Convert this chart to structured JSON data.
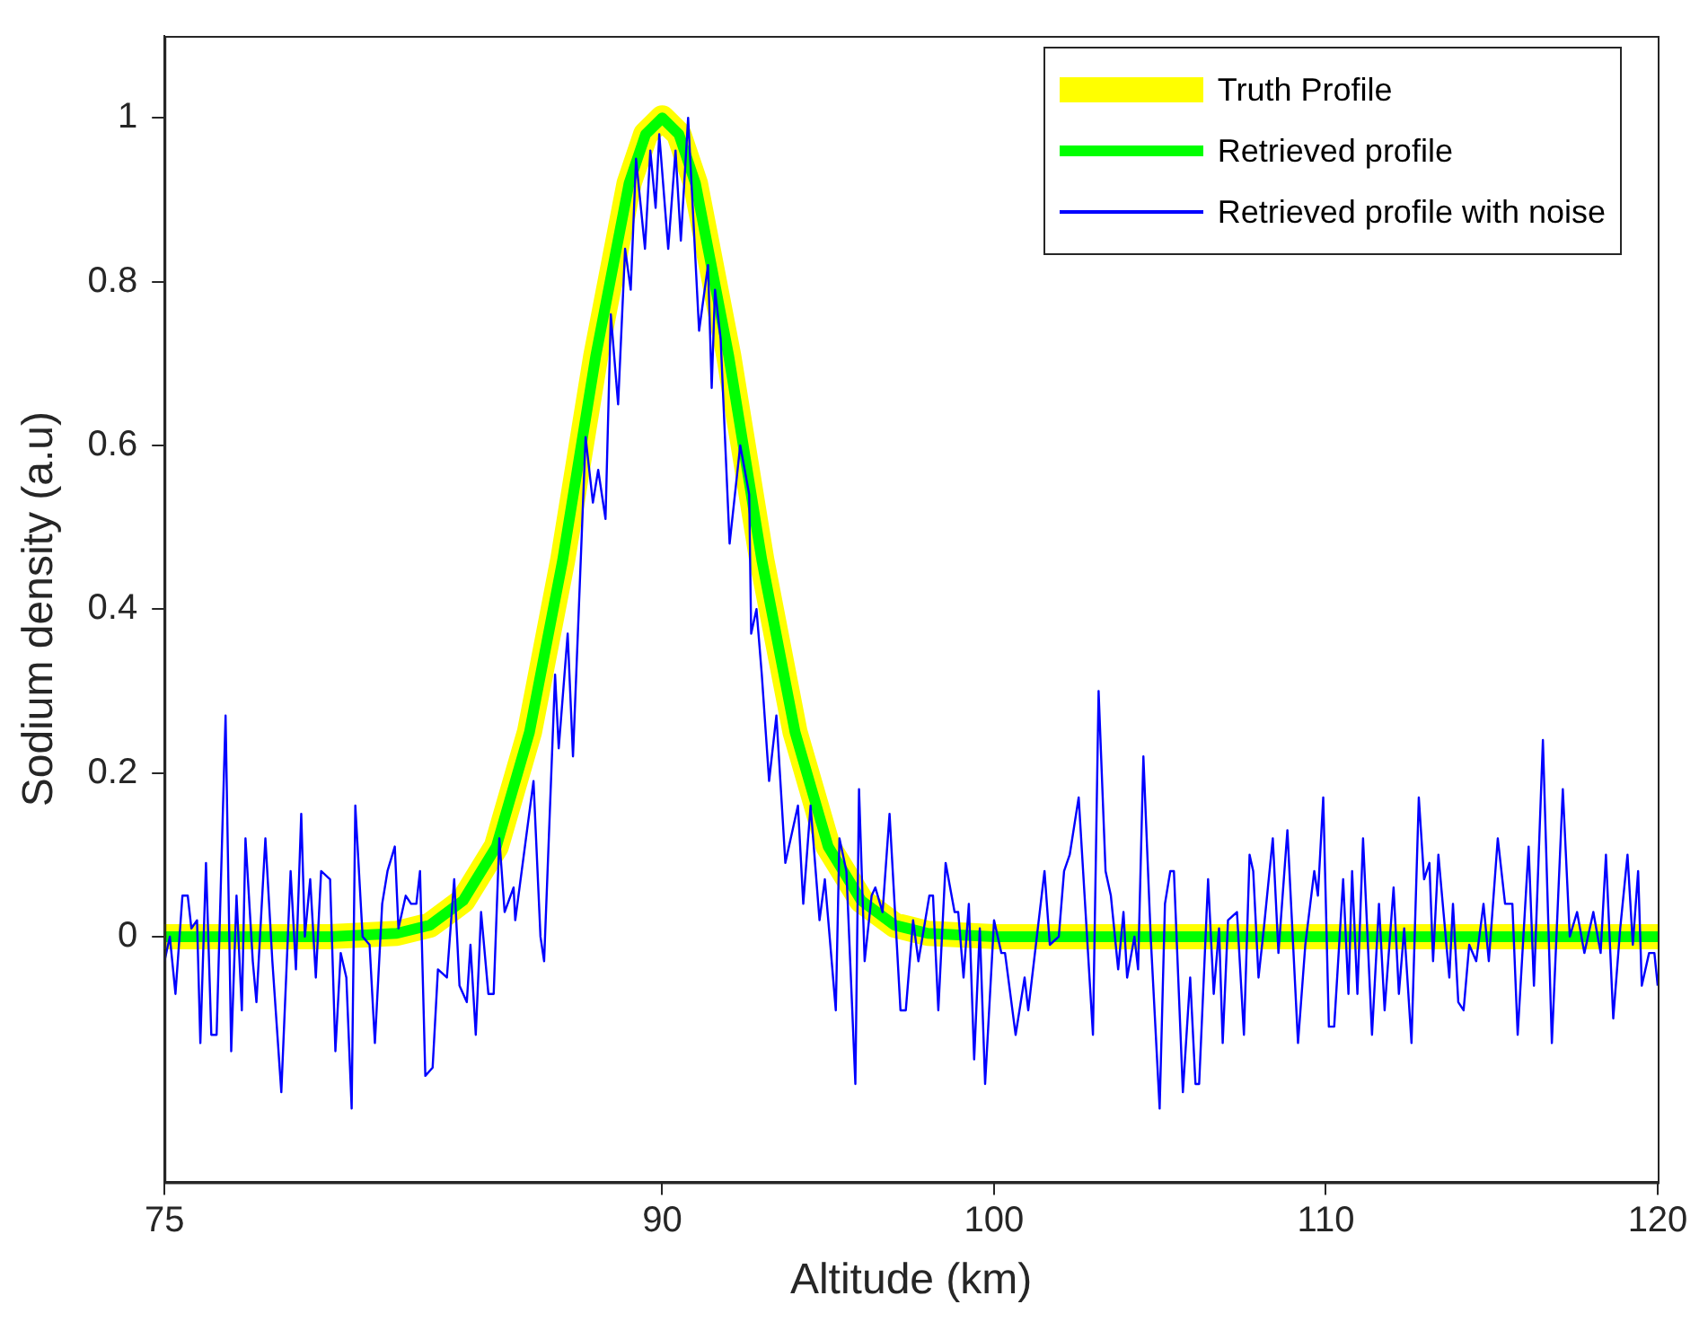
{
  "chart_data": {
    "type": "line",
    "xlabel": "Altitude (km)",
    "ylabel": "Sodium density (a.u)",
    "xlim": [
      75,
      120
    ],
    "ylim": [
      -0.3,
      1.1
    ],
    "xticks": [
      75,
      90,
      100,
      110,
      120
    ],
    "yticks": [
      0,
      0.2,
      0.4,
      0.6,
      0.8,
      1
    ],
    "grid": false,
    "legend": "top right",
    "marker": "none",
    "line_style": "solid",
    "series": [
      {
        "name": "Truth Profile",
        "color": "#ffff00",
        "x": [
          75,
          80,
          82,
          83,
          84,
          85,
          86,
          87,
          88,
          89,
          89.5,
          90,
          90.5,
          91,
          92,
          93,
          94,
          95,
          96,
          97,
          98,
          100,
          110,
          120
        ],
        "values": [
          0,
          0,
          0.004,
          0.014,
          0.044,
          0.11,
          0.25,
          0.46,
          0.71,
          0.92,
          0.98,
          1,
          0.98,
          0.92,
          0.71,
          0.46,
          0.25,
          0.11,
          0.044,
          0.014,
          0.004,
          0,
          0,
          0
        ]
      },
      {
        "name": "Retrieved profile",
        "color": "#00ff00",
        "x": [
          75,
          80,
          82,
          83,
          84,
          85,
          86,
          87,
          88,
          89,
          89.5,
          90,
          90.5,
          91,
          92,
          93,
          94,
          95,
          96,
          97,
          98,
          100,
          110,
          120
        ],
        "values": [
          0,
          0,
          0.004,
          0.014,
          0.044,
          0.11,
          0.25,
          0.46,
          0.71,
          0.92,
          0.98,
          1,
          0.98,
          0.92,
          0.71,
          0.46,
          0.25,
          0.11,
          0.044,
          0.014,
          0.004,
          0,
          0,
          0
        ]
      },
      {
        "name": "Retrieved profile with noise",
        "color": "#0000ff",
        "x": [
          75,
          75.16,
          75.33,
          75.54,
          75.7,
          75.81,
          75.98,
          76.08,
          76.25,
          76.41,
          76.57,
          76.84,
          77.01,
          77.17,
          77.33,
          77.44,
          77.66,
          77.77,
          78.04,
          78.25,
          78.52,
          78.8,
          78.96,
          79.12,
          79.23,
          79.39,
          79.56,
          79.72,
          79.99,
          80.15,
          80.31,
          80.48,
          80.64,
          80.75,
          80.97,
          81.18,
          81.34,
          81.56,
          81.72,
          81.94,
          82.05,
          82.27,
          82.43,
          82.59,
          82.7,
          82.86,
          83.08,
          83.24,
          83.51,
          83.73,
          83.89,
          84.11,
          84.22,
          84.38,
          84.54,
          84.76,
          84.92,
          85.09,
          85.25,
          85.52,
          85.57,
          86.12,
          86.33,
          86.44,
          86.77,
          86.88,
          87.15,
          87.31,
          87.69,
          87.91,
          88.07,
          88.29,
          88.45,
          88.67,
          88.88,
          89.05,
          89.21,
          89.48,
          89.64,
          89.8,
          89.91,
          90.18,
          90.4,
          90.56,
          90.78,
          91.11,
          91.38,
          91.49,
          91.59,
          91.76,
          92.03,
          92.35,
          92.62,
          92.68,
          92.84,
          93,
          93.22,
          93.44,
          93.71,
          94.09,
          94.25,
          94.47,
          94.74,
          94.9,
          95.23,
          95.34,
          95.55,
          95.82,
          95.93,
          96.1,
          96.31,
          96.42,
          96.64,
          96.85,
          97.18,
          97.34,
          97.56,
          97.72,
          98.05,
          98.16,
          98.32,
          98.54,
          98.81,
          98.92,
          99.08,
          99.24,
          99.4,
          99.57,
          99.73,
          100,
          100.22,
          100.33,
          100.65,
          100.92,
          101.03,
          101.52,
          101.68,
          101.95,
          102.11,
          102.28,
          102.55,
          102.98,
          103.15,
          103.36,
          103.52,
          103.74,
          103.9,
          104.01,
          104.23,
          104.34,
          104.5,
          104.72,
          104.99,
          105.15,
          105.31,
          105.42,
          105.69,
          105.91,
          106.07,
          106.18,
          106.45,
          106.62,
          106.78,
          106.89,
          107.05,
          107.32,
          107.53,
          107.7,
          107.81,
          107.97,
          108.13,
          108.4,
          108.57,
          108.84,
          109.16,
          109.38,
          109.65,
          109.76,
          109.92,
          110.09,
          110.25,
          110.52,
          110.68,
          110.79,
          110.95,
          111.12,
          111.39,
          111.6,
          111.77,
          112.04,
          112.2,
          112.36,
          112.58,
          112.8,
          112.96,
          113.12,
          113.23,
          113.39,
          113.72,
          113.83,
          113.99,
          114.15,
          114.32,
          114.53,
          114.75,
          114.91,
          115.18,
          115.4,
          115.62,
          115.78,
          116.11,
          116.27,
          116.54,
          116.81,
          117.14,
          117.35,
          117.57,
          117.79,
          118.06,
          118.28,
          118.44,
          118.66,
          118.87,
          119.09,
          119.25,
          119.41,
          119.52,
          119.74,
          119.9,
          120
        ],
        "values": [
          -0.03,
          0,
          -0.07,
          0.05,
          0.05,
          0.01,
          0.02,
          -0.13,
          0.09,
          -0.12,
          -0.12,
          0.27,
          -0.14,
          0.05,
          -0.09,
          0.12,
          -0.03,
          -0.08,
          0.12,
          -0.03,
          -0.19,
          0.08,
          -0.04,
          0.15,
          0,
          0.07,
          -0.05,
          0.08,
          0.07,
          -0.14,
          -0.02,
          -0.05,
          -0.21,
          0.16,
          0,
          -0.01,
          -0.13,
          0.04,
          0.08,
          0.11,
          0.01,
          0.05,
          0.04,
          0.04,
          0.08,
          -0.17,
          -0.16,
          -0.04,
          -0.05,
          0.07,
          -0.06,
          -0.08,
          -0.01,
          -0.12,
          0.03,
          -0.07,
          -0.07,
          0.12,
          0.03,
          0.06,
          0.02,
          0.19,
          0,
          -0.03,
          0.32,
          0.23,
          0.37,
          0.22,
          0.61,
          0.53,
          0.57,
          0.51,
          0.76,
          0.65,
          0.84,
          0.79,
          0.95,
          0.84,
          0.96,
          0.89,
          0.98,
          0.84,
          0.96,
          0.85,
          1,
          0.74,
          0.82,
          0.67,
          0.79,
          0.73,
          0.48,
          0.6,
          0.54,
          0.37,
          0.4,
          0.32,
          0.19,
          0.27,
          0.09,
          0.16,
          0.04,
          0.16,
          0.02,
          0.07,
          -0.09,
          0.12,
          0.08,
          -0.18,
          0.18,
          -0.03,
          0.05,
          0.06,
          0.03,
          0.15,
          -0.09,
          -0.09,
          0.02,
          -0.03,
          0.05,
          0.05,
          -0.09,
          0.09,
          0.03,
          0.03,
          -0.05,
          0.04,
          -0.15,
          0.01,
          -0.18,
          0.02,
          -0.02,
          -0.02,
          -0.12,
          -0.05,
          -0.09,
          0.08,
          -0.01,
          0,
          0.08,
          0.1,
          0.17,
          -0.12,
          0.3,
          0.08,
          0.05,
          -0.04,
          0.03,
          -0.05,
          0,
          -0.04,
          0.22,
          0,
          -0.21,
          0.04,
          0.08,
          0.08,
          -0.19,
          -0.05,
          -0.18,
          -0.18,
          0.07,
          -0.07,
          0.01,
          -0.13,
          0.02,
          0.03,
          -0.12,
          0.1,
          0.08,
          -0.05,
          0.01,
          0.12,
          -0.02,
          0.13,
          -0.13,
          -0.01,
          0.08,
          0.05,
          0.17,
          -0.11,
          -0.11,
          0.07,
          -0.07,
          0.08,
          -0.07,
          0.12,
          -0.12,
          0.04,
          -0.09,
          0.06,
          -0.07,
          0.01,
          -0.13,
          0.17,
          0.07,
          0.09,
          -0.03,
          0.1,
          -0.05,
          0.04,
          -0.08,
          -0.09,
          -0.01,
          -0.03,
          0.04,
          -0.03,
          0.12,
          0.04,
          0.04,
          -0.12,
          0.11,
          -0.06,
          0.24,
          -0.13,
          0.18,
          0,
          0.03,
          -0.02,
          0.03,
          -0.02,
          0.1,
          -0.1,
          0.01,
          0.1,
          -0.01,
          0.08,
          -0.06,
          -0.02,
          -0.02,
          -0.06
        ]
      }
    ]
  }
}
